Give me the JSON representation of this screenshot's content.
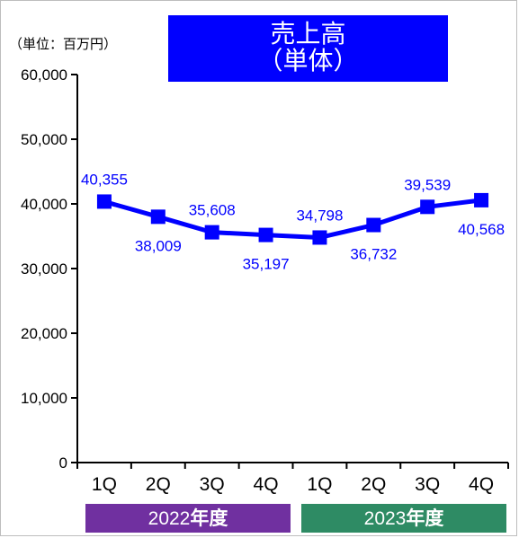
{
  "unit_label": "（単位：百万円）",
  "title": {
    "line1": "売上高",
    "line2": "（単体）",
    "color": "#0000ff"
  },
  "years": [
    {
      "number": "2022",
      "suffix": "年度",
      "color": "#7030a0"
    },
    {
      "number": "2023",
      "suffix": "年度",
      "color": "#2e8b64"
    }
  ],
  "chart_data": {
    "type": "line",
    "title": "売上高（単体）",
    "categories": [
      "1Q",
      "2Q",
      "3Q",
      "4Q",
      "1Q",
      "2Q",
      "3Q",
      "4Q"
    ],
    "category_groups": [
      "2022年度",
      "2022年度",
      "2022年度",
      "2022年度",
      "2023年度",
      "2023年度",
      "2023年度",
      "2023年度"
    ],
    "series": [
      {
        "values": [
          40355,
          38009,
          35608,
          35197,
          34798,
          36732,
          39539,
          40568
        ],
        "labels": [
          "40,355",
          "38,009",
          "35,608",
          "35,197",
          "34,798",
          "36,732",
          "39,539",
          "40,568"
        ],
        "color": "#0000ff",
        "marker": "square"
      }
    ],
    "ylim": [
      0,
      60000
    ],
    "y_ticks": [
      "0",
      "10,000",
      "20,000",
      "30,000",
      "40,000",
      "50,000",
      "60,000"
    ],
    "grid": false
  }
}
